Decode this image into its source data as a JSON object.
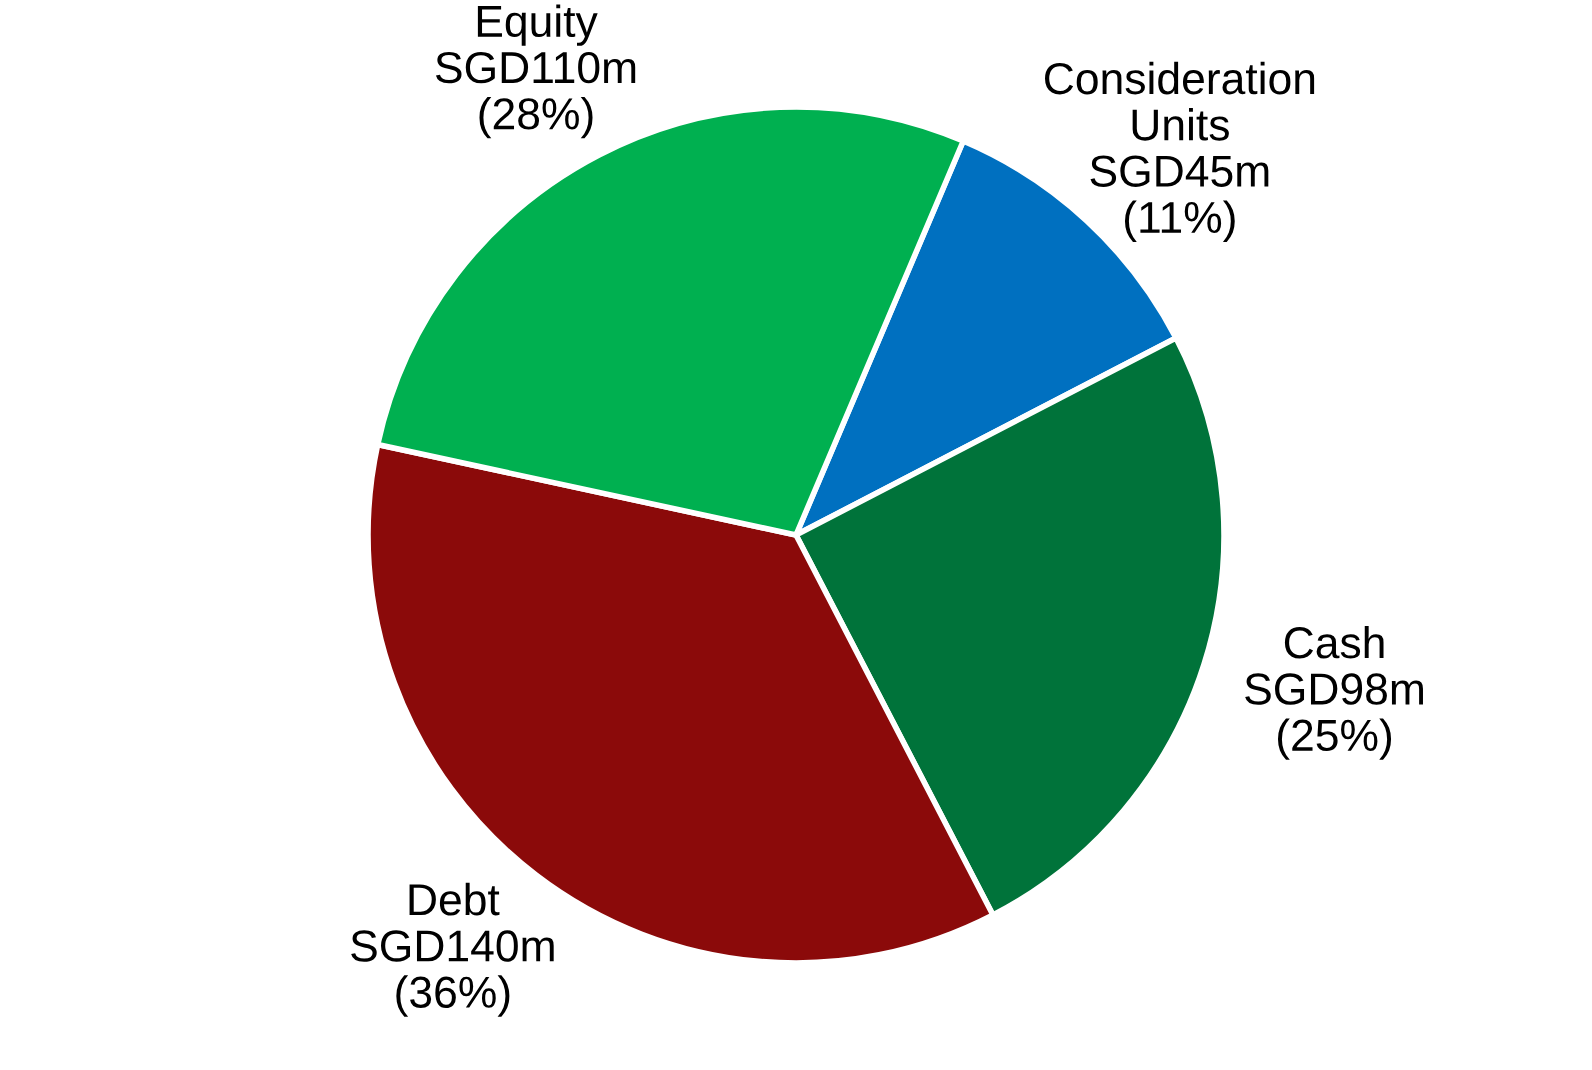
{
  "chart_data": {
    "type": "pie",
    "categories": [
      "Consideration Units",
      "Cash",
      "Debt",
      "Equity"
    ],
    "values": [
      11,
      25,
      36,
      28
    ],
    "value_labels": [
      "SGD45m\n(11%)",
      "SGD98m\n(25%)",
      "SGD140m\n(36%)",
      "SGD110m\n(28%)"
    ],
    "colors": [
      "#0070c0",
      "#00733a",
      "#8b0a0a",
      "#00b050"
    ],
    "legend": false
  }
}
